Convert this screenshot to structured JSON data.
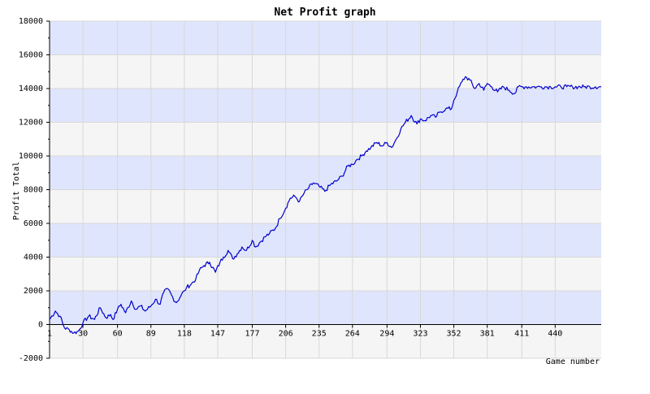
{
  "chart_data": {
    "type": "line",
    "title": "Net Profit graph",
    "xlabel": "Game number",
    "ylabel": "Profit Total",
    "xlim": [
      1,
      480
    ],
    "ylim": [
      -2000,
      18000
    ],
    "x_ticks": [
      "1",
      "30",
      "60",
      "89",
      "118",
      "147",
      "177",
      "206",
      "235",
      "264",
      "294",
      "323",
      "352",
      "381",
      "411",
      "440"
    ],
    "y_ticks": [
      "-2000",
      "0",
      "2000",
      "4000",
      "6000",
      "8000",
      "10000",
      "12000",
      "14000",
      "16000",
      "18000"
    ],
    "grid": true,
    "legend": "none",
    "colors": {
      "line": "#0000cc",
      "band_a": "#dfe5fc",
      "band_b": "#f5f5f5",
      "grid": "#d8d8d8",
      "axis": "#000000"
    },
    "series": [
      {
        "x": [
          1,
          6,
          10,
          14,
          18,
          22,
          26,
          30,
          35,
          40,
          45,
          50,
          54,
          56,
          60,
          63,
          67,
          72,
          76,
          80,
          84,
          89,
          93,
          97,
          100,
          104,
          108,
          111,
          115,
          118,
          120,
          124,
          128,
          131,
          135,
          140,
          145,
          149,
          152,
          156,
          160,
          164,
          168,
          172,
          177,
          180,
          184,
          188,
          192,
          197,
          201,
          206,
          210,
          214,
          218,
          222,
          226,
          230,
          235,
          240,
          245,
          250,
          255,
          260,
          264,
          268,
          272,
          276,
          280,
          285,
          290,
          294,
          298,
          302,
          306,
          310,
          315,
          320,
          323,
          327,
          332,
          336,
          340,
          345,
          350,
          352,
          355,
          359,
          362,
          366,
          370,
          374,
          378,
          381,
          385,
          390,
          395,
          400,
          405,
          408,
          411,
          415,
          420,
          424,
          428,
          432,
          436,
          440,
          445,
          450,
          455,
          460,
          465,
          470,
          475,
          480
        ],
        "y": [
          300,
          800,
          500,
          -200,
          -300,
          -500,
          -400,
          100,
          500,
          300,
          1000,
          400,
          600,
          300,
          900,
          1200,
          700,
          1400,
          900,
          1100,
          800,
          1100,
          1500,
          1200,
          1900,
          2100,
          1600,
          1300,
          1700,
          2000,
          2200,
          2400,
          2700,
          3200,
          3500,
          3700,
          3100,
          3700,
          4000,
          4400,
          3900,
          4200,
          4600,
          4400,
          5000,
          4600,
          4900,
          5200,
          5400,
          5700,
          6300,
          6900,
          7500,
          7600,
          7300,
          7800,
          8100,
          8400,
          8200,
          7900,
          8300,
          8500,
          8800,
          9400,
          9500,
          9800,
          10000,
          10300,
          10500,
          10800,
          10600,
          10800,
          10500,
          11000,
          11600,
          12000,
          12400,
          11900,
          12200,
          12100,
          12400,
          12300,
          12600,
          12800,
          12800,
          13300,
          13800,
          14400,
          14700,
          14500,
          14000,
          14300,
          13900,
          14300,
          14100,
          13800,
          14100,
          13900,
          13700,
          14100,
          14100,
          14100,
          14100,
          14100,
          14100,
          14100,
          14100,
          14100,
          14100,
          14100,
          14100,
          14100,
          14100,
          14100,
          14100,
          14100
        ]
      }
    ]
  }
}
